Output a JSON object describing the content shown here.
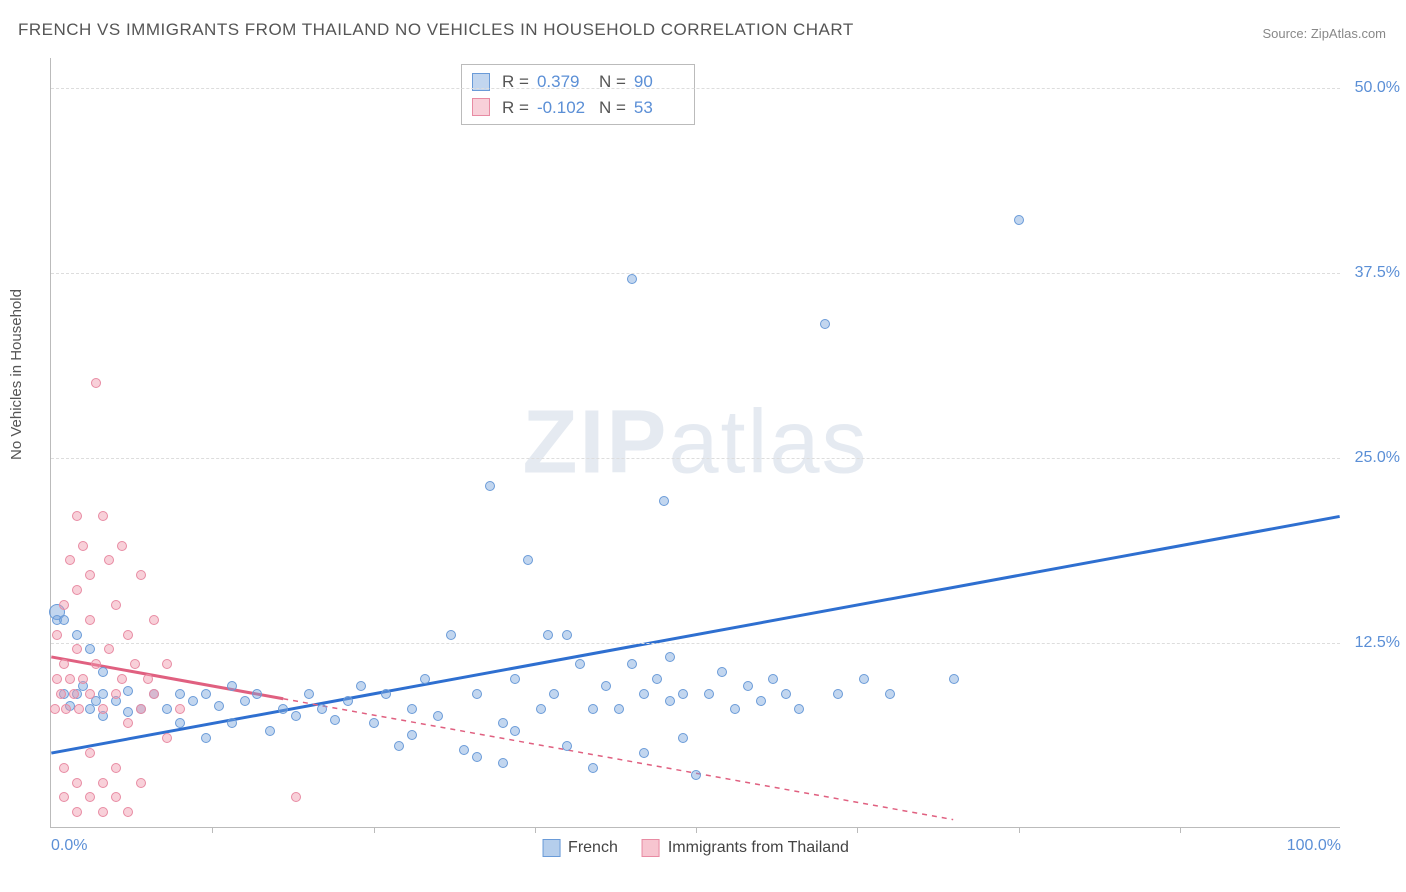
{
  "title": "FRENCH VS IMMIGRANTS FROM THAILAND NO VEHICLES IN HOUSEHOLD CORRELATION CHART",
  "source": "Source: ZipAtlas.com",
  "y_axis_label": "No Vehicles in Household",
  "watermark": {
    "head": "ZIP",
    "tail": "atlas"
  },
  "chart": {
    "xlim": [
      0,
      100
    ],
    "ylim": [
      0,
      52
    ],
    "y_ticks": [
      {
        "v": 12.5,
        "label": "12.5%"
      },
      {
        "v": 25.0,
        "label": "25.0%"
      },
      {
        "v": 37.5,
        "label": "37.5%"
      },
      {
        "v": 50.0,
        "label": "50.0%"
      }
    ],
    "x_ticks_minor": [
      12.5,
      25,
      37.5,
      50,
      62.5,
      75,
      87.5
    ],
    "x_labels": [
      {
        "v": 0,
        "label": "0.0%"
      },
      {
        "v": 100,
        "label": "100.0%"
      }
    ],
    "grid_color": "#dddddd",
    "background": "#ffffff"
  },
  "series": [
    {
      "name": "French",
      "fill": "rgba(120,165,220,0.45)",
      "stroke": "#6a9bd8",
      "trend_color": "#2e6fd0",
      "trend_dash": "none",
      "R": "0.379",
      "N": "90",
      "trend": {
        "x1": 0,
        "y1": 5.0,
        "x2": 100,
        "y2": 21.0
      },
      "points": [
        [
          0.5,
          14.5,
          16
        ],
        [
          0.5,
          14,
          10
        ],
        [
          1,
          9,
          10
        ],
        [
          1.5,
          8.2,
          10
        ],
        [
          2,
          9,
          10
        ],
        [
          2.5,
          9.5,
          10
        ],
        [
          3,
          8,
          10
        ],
        [
          3.5,
          8.5,
          10
        ],
        [
          4,
          7.5,
          10
        ],
        [
          4,
          9,
          10
        ],
        [
          5,
          8.5,
          10
        ],
        [
          6,
          7.8,
          10
        ],
        [
          6,
          9.2,
          10
        ],
        [
          7,
          8,
          10
        ],
        [
          8,
          9,
          10
        ],
        [
          9,
          8,
          10
        ],
        [
          10,
          7,
          10
        ],
        [
          10,
          9,
          10
        ],
        [
          11,
          8.5,
          10
        ],
        [
          12,
          9,
          10
        ],
        [
          13,
          8.2,
          10
        ],
        [
          14,
          7,
          10
        ],
        [
          14,
          9.5,
          10
        ],
        [
          15,
          8.5,
          10
        ],
        [
          16,
          9,
          10
        ],
        [
          17,
          6.5,
          10
        ],
        [
          18,
          8,
          10
        ],
        [
          19,
          7.5,
          10
        ],
        [
          20,
          9,
          10
        ],
        [
          21,
          8,
          10
        ],
        [
          22,
          7.2,
          10
        ],
        [
          23,
          8.5,
          10
        ],
        [
          24,
          9.5,
          10
        ],
        [
          25,
          7,
          10
        ],
        [
          26,
          9,
          10
        ],
        [
          27,
          5.5,
          10
        ],
        [
          28,
          8,
          10
        ],
        [
          29,
          10,
          10
        ],
        [
          30,
          7.5,
          10
        ],
        [
          31,
          13,
          10
        ],
        [
          32,
          5.2,
          10
        ],
        [
          33,
          9,
          10
        ],
        [
          33,
          4.7,
          10
        ],
        [
          34,
          23,
          10
        ],
        [
          35,
          7,
          10
        ],
        [
          35,
          4.3,
          10
        ],
        [
          36,
          10,
          10
        ],
        [
          37,
          18,
          10
        ],
        [
          38,
          8,
          10
        ],
        [
          38.5,
          13,
          10
        ],
        [
          39,
          9,
          10
        ],
        [
          40,
          5.5,
          10
        ],
        [
          40,
          13,
          10
        ],
        [
          41,
          11,
          10
        ],
        [
          42,
          8,
          10
        ],
        [
          43,
          9.5,
          10
        ],
        [
          44,
          8,
          10
        ],
        [
          45,
          37,
          10
        ],
        [
          45,
          11,
          10
        ],
        [
          46,
          5,
          10
        ],
        [
          46,
          9,
          10
        ],
        [
          47,
          10,
          10
        ],
        [
          47.5,
          22,
          10
        ],
        [
          48,
          8.5,
          10
        ],
        [
          49,
          6,
          10
        ],
        [
          49,
          9,
          10
        ],
        [
          50,
          3.5,
          10
        ],
        [
          51,
          9,
          10
        ],
        [
          52,
          10.5,
          10
        ],
        [
          53,
          8,
          10
        ],
        [
          54,
          9.5,
          10
        ],
        [
          55,
          8.5,
          10
        ],
        [
          56,
          10,
          10
        ],
        [
          57,
          9,
          10
        ],
        [
          58,
          8,
          10
        ],
        [
          60,
          34,
          10
        ],
        [
          61,
          9,
          10
        ],
        [
          63,
          10,
          10
        ],
        [
          65,
          9,
          10
        ],
        [
          70,
          10,
          10
        ],
        [
          75,
          41,
          10
        ],
        [
          1,
          14,
          10
        ],
        [
          2,
          13,
          10
        ],
        [
          3,
          12,
          10
        ],
        [
          4,
          10.5,
          10
        ],
        [
          12,
          6,
          10
        ],
        [
          28,
          6.2,
          10
        ],
        [
          36,
          6.5,
          10
        ],
        [
          42,
          4,
          10
        ],
        [
          48,
          11.5,
          10
        ]
      ]
    },
    {
      "name": "Immigrants from Thailand",
      "fill": "rgba(240,150,170,0.45)",
      "stroke": "#e88ba3",
      "trend_color": "#e06080",
      "trend_dash": "4,4",
      "R": "-0.102",
      "N": "53",
      "trend": {
        "x1": 0,
        "y1": 11.5,
        "x2": 70,
        "y2": 0.5
      },
      "trend_solid_until": 18,
      "points": [
        [
          0.3,
          8,
          10
        ],
        [
          0.5,
          10,
          10
        ],
        [
          0.5,
          13,
          10
        ],
        [
          0.8,
          9,
          10
        ],
        [
          1,
          15,
          10
        ],
        [
          1,
          11,
          10
        ],
        [
          1.2,
          8,
          10
        ],
        [
          1.5,
          10,
          10
        ],
        [
          1.5,
          18,
          10
        ],
        [
          1.8,
          9,
          10
        ],
        [
          2,
          21,
          10
        ],
        [
          2,
          12,
          10
        ],
        [
          2,
          16,
          10
        ],
        [
          2.2,
          8,
          10
        ],
        [
          2.5,
          10,
          10
        ],
        [
          2.5,
          19,
          10
        ],
        [
          3,
          9,
          10
        ],
        [
          3,
          14,
          10
        ],
        [
          3,
          17,
          10
        ],
        [
          3.5,
          11,
          10
        ],
        [
          3.5,
          30,
          10
        ],
        [
          4,
          8,
          10
        ],
        [
          4,
          21,
          10
        ],
        [
          4.5,
          12,
          10
        ],
        [
          4.5,
          18,
          10
        ],
        [
          5,
          9,
          10
        ],
        [
          5,
          15,
          10
        ],
        [
          5.5,
          10,
          10
        ],
        [
          5.5,
          19,
          10
        ],
        [
          6,
          7,
          10
        ],
        [
          6,
          13,
          10
        ],
        [
          6.5,
          11,
          10
        ],
        [
          7,
          8,
          10
        ],
        [
          7,
          17,
          10
        ],
        [
          7.5,
          10,
          10
        ],
        [
          8,
          9,
          10
        ],
        [
          8,
          14,
          10
        ],
        [
          9,
          6,
          10
        ],
        [
          9,
          11,
          10
        ],
        [
          10,
          8,
          10
        ],
        [
          1,
          4,
          10
        ],
        [
          1,
          2,
          10
        ],
        [
          2,
          3,
          10
        ],
        [
          2,
          1,
          10
        ],
        [
          3,
          2,
          10
        ],
        [
          3,
          5,
          10
        ],
        [
          4,
          1,
          10
        ],
        [
          4,
          3,
          10
        ],
        [
          5,
          2,
          10
        ],
        [
          5,
          4,
          10
        ],
        [
          6,
          1,
          10
        ],
        [
          19,
          2,
          10
        ],
        [
          7,
          3,
          10
        ]
      ]
    }
  ],
  "legend_bottom": [
    {
      "label": "French",
      "fill": "rgba(120,165,220,0.55)",
      "stroke": "#6a9bd8"
    },
    {
      "label": "Immigrants from Thailand",
      "fill": "rgba(240,150,170,0.55)",
      "stroke": "#e88ba3"
    }
  ]
}
